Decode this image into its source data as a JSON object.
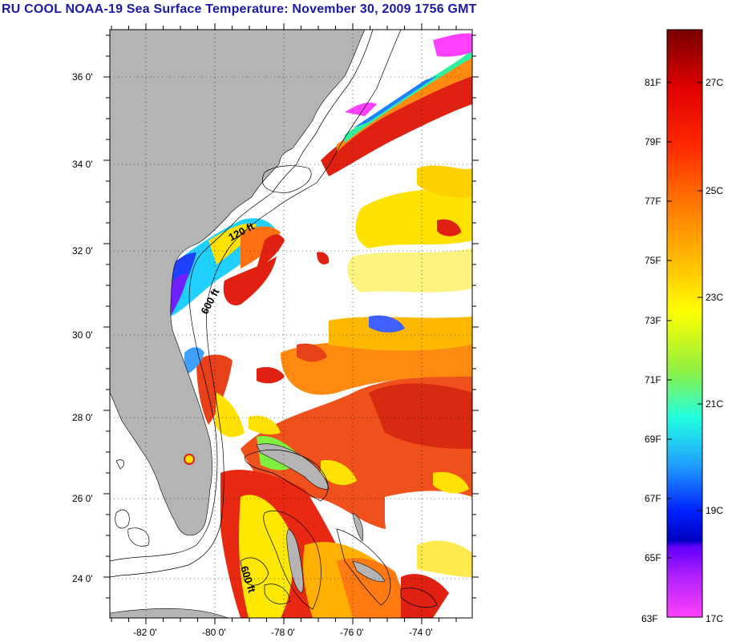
{
  "title": "RU COOL  NOAA-19  Sea Surface Temperature:  November 30, 2009 1756 GMT",
  "map": {
    "lat_ticks": [
      "36 0'",
      "34 0'",
      "32 0'",
      "30 0'",
      "28 0'",
      "26 0'",
      "24 0'"
    ],
    "lon_ticks": [
      "-82 0'",
      "-80 0'",
      "-78 0'",
      "-76 0'",
      "-74 0'"
    ],
    "contour_labels": [
      "120 ft",
      "600 ft",
      "600 ft"
    ],
    "colors": {
      "land": "#b4b4b4",
      "ocean_no_data": "#ffffff",
      "grid": "#000000"
    }
  },
  "colorbar": {
    "fahrenheit_labels": [
      "81F",
      "79F",
      "77F",
      "75F",
      "73F",
      "71F",
      "69F",
      "67F",
      "65F",
      "63F"
    ],
    "celsius_labels": [
      "27C",
      "25C",
      "23C",
      "21C",
      "19C",
      "17C"
    ],
    "gradient_stops": [
      "#7a0000",
      "#e00000",
      "#ff2a00",
      "#ff7a00",
      "#ffc000",
      "#ffff00",
      "#90f040",
      "#20ffe0",
      "#20a0ff",
      "#0020ff",
      "#0000c0",
      "#a000ff",
      "#ff40ff"
    ]
  }
}
